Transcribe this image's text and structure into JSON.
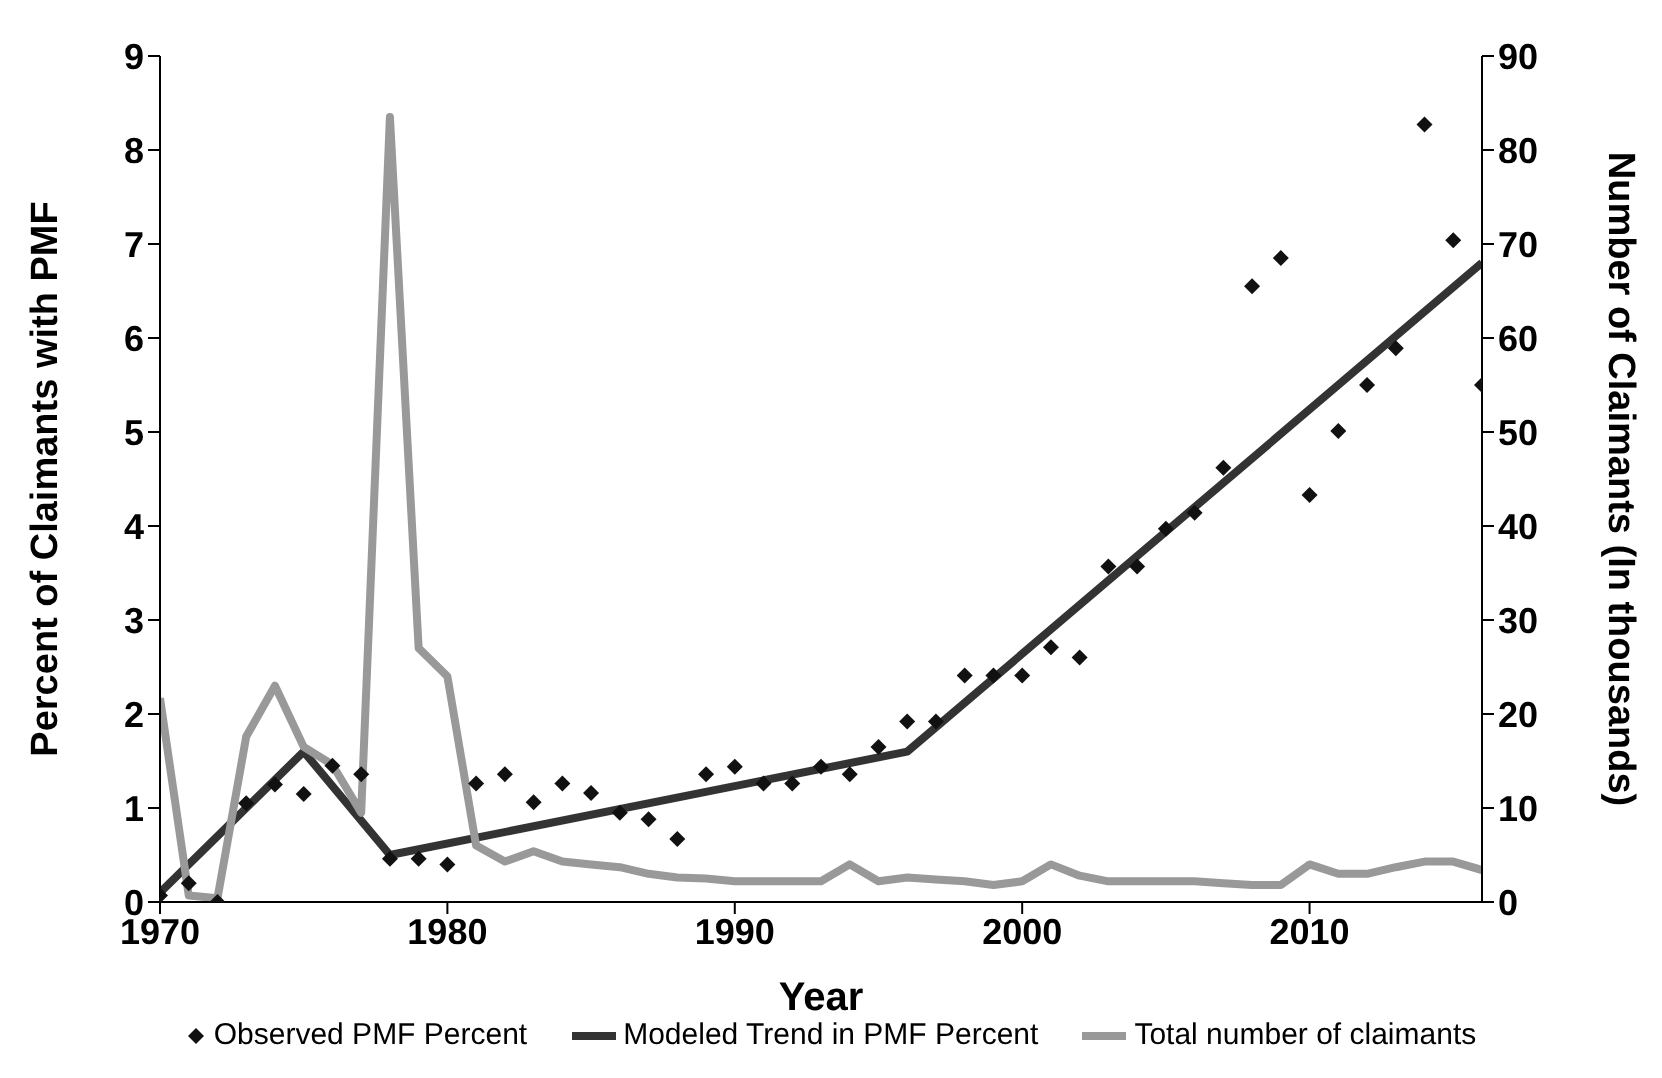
{
  "chart_data": {
    "type": "line",
    "xlabel": "Year",
    "ylabel": "Percent of Claimants with PMF",
    "y2label": "Number of Claimants (In thousands)",
    "x": [
      1970,
      1971,
      1972,
      1973,
      1974,
      1975,
      1976,
      1977,
      1978,
      1979,
      1980,
      1981,
      1982,
      1983,
      1984,
      1985,
      1986,
      1987,
      1988,
      1989,
      1990,
      1991,
      1992,
      1993,
      1994,
      1995,
      1996,
      1997,
      1998,
      1999,
      2000,
      2001,
      2002,
      2003,
      2004,
      2005,
      2006,
      2007,
      2008,
      2009,
      2010,
      2011,
      2012,
      2013,
      2014,
      2015,
      2016
    ],
    "series": [
      {
        "name": "Observed PMF Percent",
        "type": "scatter",
        "marker": "diamond",
        "color": "#111111",
        "values": [
          0.07,
          0.2,
          0.0,
          1.05,
          1.25,
          1.15,
          1.45,
          1.36,
          0.46,
          0.46,
          0.4,
          1.26,
          1.36,
          1.06,
          1.26,
          1.16,
          0.95,
          0.88,
          0.67,
          1.36,
          1.44,
          1.26,
          1.26,
          1.44,
          1.36,
          1.65,
          1.92,
          1.92,
          2.41,
          2.41,
          2.41,
          2.71,
          2.6,
          3.57,
          3.57,
          3.97,
          4.14,
          4.62,
          6.55,
          6.85,
          4.33,
          5.01,
          5.5,
          5.89,
          8.27,
          7.04,
          5.5
        ]
      },
      {
        "name": "Modeled Trend in PMF Percent",
        "marker": "none",
        "color": "#333333",
        "x": [
          1970,
          1975,
          1978,
          1996,
          2016
        ],
        "values": [
          0.1,
          1.6,
          0.5,
          1.6,
          6.8
        ]
      },
      {
        "name": "Total number of claimants",
        "marker": "none",
        "axis": "y2",
        "color": "#999999",
        "values": [
          21.7,
          0.7,
          0.4,
          17.6,
          23,
          16.5,
          14.6,
          9.5,
          83.5,
          27,
          24,
          6,
          4.3,
          5.4,
          4.3,
          4,
          3.7,
          3,
          2.6,
          2.5,
          2.2,
          2.2,
          2.2,
          2.2,
          4,
          2.2,
          2.6,
          2.4,
          2.2,
          1.8,
          2.2,
          4,
          2.8,
          2.2,
          2.2,
          2.2,
          2.2,
          2,
          1.8,
          1.8,
          4,
          3,
          3,
          3.7,
          4.3,
          4.3,
          3.4
        ]
      }
    ],
    "xlim": [
      1970,
      2016
    ],
    "xticks": [
      1970,
      1980,
      1990,
      2000,
      2010
    ],
    "ylim": [
      0,
      9
    ],
    "yticks": [
      0,
      1,
      2,
      3,
      4,
      5,
      6,
      7,
      8,
      9
    ],
    "y2lim": [
      0,
      90
    ],
    "y2ticks": [
      0,
      10,
      20,
      30,
      40,
      50,
      60,
      70,
      80,
      90
    ],
    "grid": false,
    "legend": "bottom"
  }
}
